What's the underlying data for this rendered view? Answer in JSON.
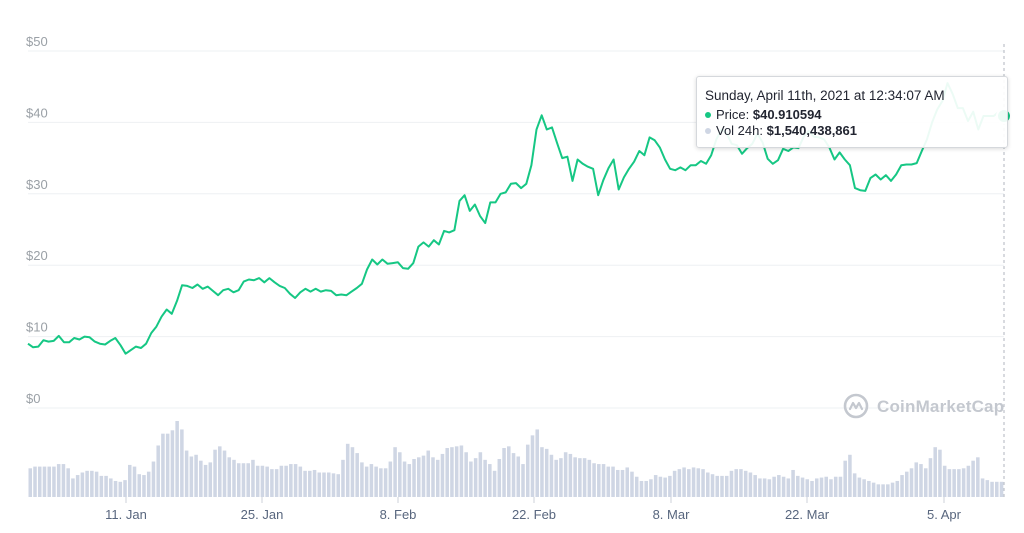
{
  "chart_data": {
    "type": "line",
    "y_ticks": [
      "$0",
      "$10",
      "$20",
      "$30",
      "$40",
      "$50"
    ],
    "x_ticks": [
      "11. Jan",
      "25. Jan",
      "8. Feb",
      "22. Feb",
      "8. Mar",
      "22. Mar",
      "5. Apr"
    ],
    "ylim": [
      0,
      50
    ],
    "grid": true,
    "price_series": {
      "name": "Price",
      "color": "#16c784",
      "values": [
        9.0,
        8.5,
        8.6,
        9.5,
        9.3,
        9.4,
        10.1,
        9.2,
        9.2,
        9.8,
        9.6,
        10.0,
        9.9,
        9.3,
        9.0,
        8.9,
        9.4,
        9.8,
        8.8,
        7.6,
        8.1,
        8.6,
        8.4,
        9.0,
        10.5,
        11.4,
        12.8,
        13.8,
        13.2,
        15.0,
        17.2,
        17.1,
        16.8,
        17.3,
        16.7,
        17.0,
        16.4,
        15.8,
        16.5,
        16.7,
        16.2,
        16.5,
        17.7,
        18.0,
        17.9,
        18.2,
        17.6,
        18.2,
        17.6,
        17.1,
        16.8,
        16.0,
        15.4,
        16.2,
        16.7,
        16.3,
        16.7,
        16.3,
        16.5,
        16.4,
        15.8,
        15.9,
        15.8,
        16.3,
        16.8,
        17.4,
        19.4,
        20.8,
        20.1,
        20.8,
        20.2,
        20.3,
        20.4,
        19.6,
        19.5,
        20.3,
        22.6,
        23.2,
        22.6,
        23.5,
        22.9,
        24.8,
        24.6,
        24.9,
        29.0,
        29.8,
        27.6,
        28.5,
        26.9,
        25.9,
        28.8,
        28.8,
        30.0,
        30.2,
        31.4,
        31.5,
        30.8,
        31.4,
        34.0,
        39.0,
        41.0,
        39.0,
        39.3,
        37.1,
        35.0,
        35.2,
        31.8,
        34.8,
        34.2,
        33.8,
        33.5,
        29.8,
        31.9,
        33.6,
        34.8,
        30.6,
        32.3,
        33.5,
        34.5,
        36.0,
        35.4,
        37.9,
        37.5,
        36.5,
        34.8,
        33.5,
        33.3,
        33.7,
        33.3,
        34.0,
        34.0,
        34.6,
        34.2,
        35.4,
        37.6,
        39.0,
        38.5,
        37.0,
        36.8,
        35.6,
        36.4,
        37.0,
        38.4,
        37.2,
        34.9,
        34.2,
        34.7,
        36.3,
        36.0,
        36.5,
        36.4,
        38.0,
        38.8,
        38.0,
        37.9,
        37.6,
        36.5,
        34.8,
        35.8,
        34.8,
        34.0,
        30.8,
        30.5,
        30.4,
        32.2,
        32.7,
        32.0,
        32.6,
        31.8,
        32.7,
        34.0,
        34.1,
        34.1,
        34.3,
        36.0,
        37.6,
        40.0,
        41.8,
        43.0,
        45.5,
        44.0,
        42.0,
        42.0,
        40.2,
        41.5,
        39.0,
        40.9,
        40.9,
        40.9,
        41.5,
        40.9
      ]
    },
    "volume_series": {
      "name": "Vol 24h",
      "color": "#cfd6e4",
      "values": [
        3.4,
        3.6,
        3.6,
        3.6,
        3.6,
        3.6,
        3.9,
        3.9,
        3.4,
        2.2,
        2.6,
        2.9,
        3.1,
        3.1,
        3.0,
        2.5,
        2.5,
        2.2,
        1.9,
        1.8,
        2.0,
        3.8,
        3.6,
        2.7,
        2.6,
        3.0,
        4.2,
        6.1,
        7.5,
        7.5,
        7.9,
        9.0,
        8.0,
        5.5,
        4.8,
        5.0,
        4.3,
        3.8,
        4.1,
        5.6,
        6.0,
        5.5,
        4.7,
        4.4,
        4.0,
        4.0,
        4.0,
        4.4,
        3.7,
        3.7,
        3.6,
        3.3,
        3.3,
        3.7,
        3.7,
        3.9,
        3.9,
        3.6,
        3.1,
        3.1,
        3.2,
        2.9,
        2.9,
        2.9,
        2.8,
        2.7,
        4.4,
        6.3,
        5.9,
        5.2,
        4.1,
        3.6,
        3.9,
        3.6,
        3.4,
        3.4,
        4.2,
        5.9,
        5.3,
        4.2,
        3.9,
        4.5,
        4.7,
        4.9,
        5.5,
        4.7,
        4.4,
        5.1,
        5.8,
        5.9,
        6.0,
        6.1,
        5.3,
        4.2,
        4.6,
        5.3,
        4.4,
        3.9,
        3.1,
        4.5,
        5.8,
        6.0,
        5.2,
        4.8,
        3.9,
        6.2,
        7.3,
        8.0,
        5.9,
        5.7,
        5.0,
        4.4,
        4.6,
        5.3,
        5.1,
        4.7,
        4.6,
        4.6,
        4.4,
        4.0,
        3.9,
        3.9,
        3.6,
        3.6,
        3.2,
        3.2,
        3.5,
        3.0,
        2.4,
        1.9,
        1.9,
        2.1,
        2.6,
        2.4,
        2.3,
        2.5,
        3.1,
        3.3,
        3.5,
        3.3,
        3.5,
        3.4,
        3.3,
        2.9,
        2.7,
        2.5,
        2.5,
        2.5,
        3.1,
        3.3,
        3.3,
        3.1,
        2.9,
        2.6,
        2.2,
        2.2,
        2.1,
        2.4,
        2.6,
        2.4,
        2.2,
        3.2,
        2.5,
        2.3,
        2.1,
        1.9,
        2.2,
        2.3,
        2.4,
        2.1,
        2.4,
        2.4,
        4.3,
        5.0,
        2.8,
        2.3,
        2.1,
        1.9,
        1.7,
        1.5,
        1.5,
        1.5,
        1.7,
        1.9,
        2.6,
        3.0,
        3.4,
        4.1,
        3.9,
        3.4,
        4.6,
        5.9,
        5.6,
        3.7,
        3.3,
        3.3,
        3.3,
        3.4,
        3.7,
        4.3,
        4.7,
        2.2,
        2.0,
        1.8,
        1.8,
        1.8
      ]
    },
    "tooltip": {
      "date": "Sunday, April 11th, 2021 at 12:34:07 AM",
      "price_label": "Price:",
      "price_value": "$40.910594",
      "volume_label": "Vol 24h:",
      "volume_value": "$1,540,438,861"
    },
    "watermark": "CoinMarketCap"
  }
}
